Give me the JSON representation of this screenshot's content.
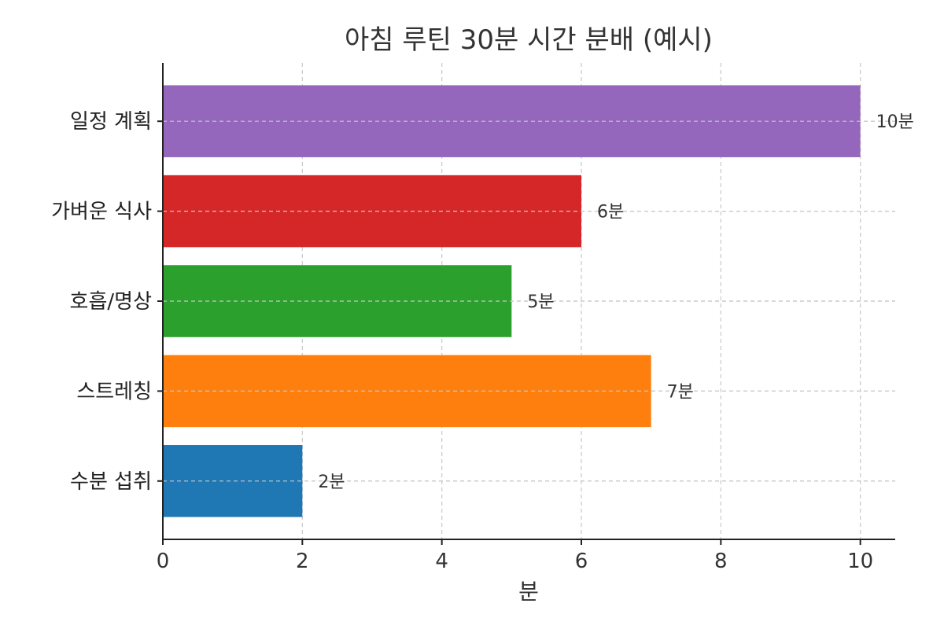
{
  "chart_data": {
    "type": "bar",
    "orientation": "horizontal",
    "title": "아침 루틴 30분 시간 분배 (예시)",
    "xlabel": "분",
    "ylabel": "",
    "xlim": [
      0,
      10.5
    ],
    "xticks": [
      0,
      2,
      4,
      6,
      8,
      10
    ],
    "grid": true,
    "categories": [
      "수분 섭취",
      "스트레칭",
      "호흡/명상",
      "가벼운 식사",
      "일정 계획"
    ],
    "values": [
      2,
      7,
      5,
      6,
      10
    ],
    "data_labels": [
      "2분",
      "7분",
      "5분",
      "6분",
      "10분"
    ],
    "colors": [
      "#1f77b4",
      "#ff7f0e",
      "#2ca02c",
      "#d62728",
      "#9467bd"
    ]
  }
}
